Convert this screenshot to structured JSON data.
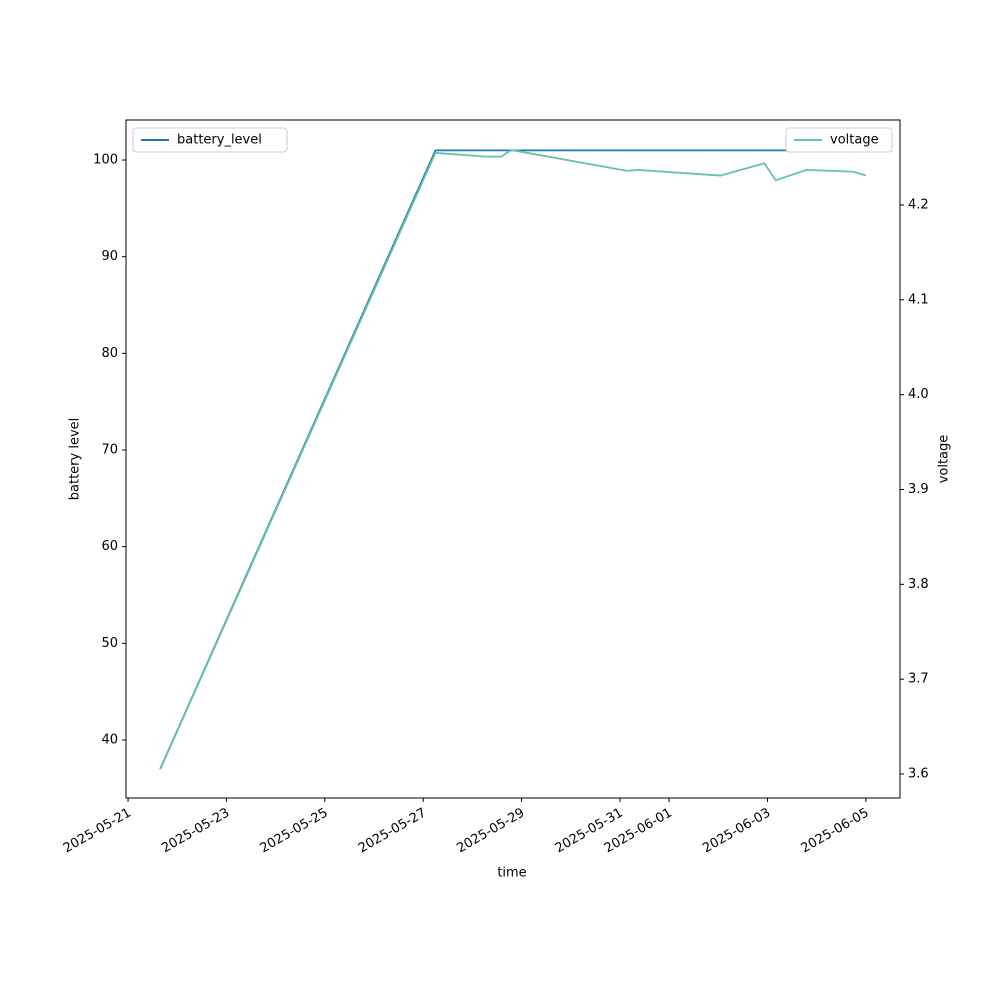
{
  "chart_data": {
    "type": "line",
    "x": [
      "2025-05-21 15:40",
      "2025-05-27 06:00",
      "2025-05-28 06:30",
      "2025-05-28 14:10",
      "2025-05-28 19:00",
      "2025-05-31 03:30",
      "2025-05-31 08:20",
      "2025-06-02 01:00",
      "2025-06-02 22:30",
      "2025-06-03 04:00",
      "2025-06-03 19:00",
      "2025-06-04 18:10",
      "2025-06-05 00:00"
    ],
    "series": [
      {
        "name": "battery_level",
        "color": "#1f77b4",
        "values": [
          37,
          101,
          101,
          101,
          101,
          101,
          101,
          101,
          101,
          101,
          101,
          101,
          101
        ]
      },
      {
        "name": "voltage",
        "color": "#66c2a5",
        "axis": "y2",
        "values": [
          3.605,
          4.255,
          4.251,
          4.251,
          4.258,
          4.236,
          4.237,
          4.231,
          4.244,
          4.226,
          4.237,
          4.235,
          4.231
        ]
      }
    ],
    "xlabel": "time",
    "ylabel": "battery level",
    "y2label": "voltage",
    "xlim": [
      "2025-05-20 23:00",
      "2025-06-05 16:40"
    ],
    "xticks": [
      "2025-05-21",
      "2025-05-23",
      "2025-05-25",
      "2025-05-27",
      "2025-05-29",
      "2025-05-31",
      "2025-06-01",
      "2025-06-03",
      "2025-06-05"
    ],
    "ylim": [
      34.0,
      104.14
    ],
    "yticks": [
      40,
      50,
      60,
      70,
      80,
      90,
      100
    ],
    "y2lim": [
      3.5747,
      4.2896
    ],
    "y2ticks": [
      3.6,
      3.7,
      3.8,
      3.9,
      {
        "value": 4,
        "label": "4.0"
      },
      4.1,
      4.2
    ],
    "legend": [
      "upper left",
      "upper right"
    ]
  }
}
